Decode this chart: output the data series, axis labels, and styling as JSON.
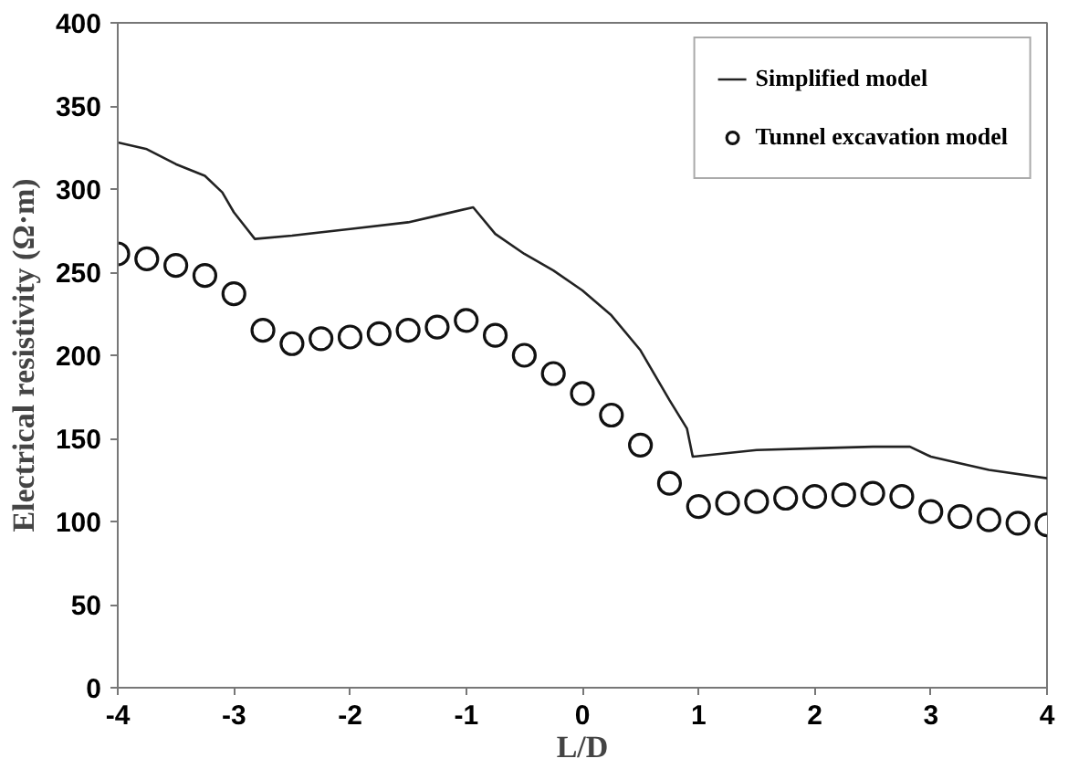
{
  "chart_data": {
    "type": "line",
    "xlabel": "L/D",
    "ylabel": "Electrical resistivity (Ω·m)",
    "xlim": [
      -4,
      4
    ],
    "xticks": [
      -4,
      -3,
      -2,
      -1,
      0,
      1,
      2,
      3,
      4
    ],
    "ylim": [
      0,
      400
    ],
    "yticks": [
      0,
      50,
      100,
      150,
      200,
      250,
      300,
      350,
      400
    ],
    "grid": false,
    "legend": "top right",
    "series": [
      {
        "name": "Simplified model",
        "color": "#222222",
        "line_style": "solid",
        "x": [
          -4,
          -3.75,
          -3.5,
          -3.25,
          -3.1,
          -3,
          -2.82,
          -2.5,
          -2,
          -1.5,
          -1.25,
          -0.94,
          -0.75,
          -0.5,
          -0.25,
          0,
          0.25,
          0.5,
          0.75,
          0.9,
          0.95,
          1.5,
          2,
          2.5,
          2.82,
          3,
          3.5,
          4
        ],
        "values": [
          328,
          324,
          315,
          308,
          298,
          286,
          270,
          272,
          276,
          280,
          284,
          289,
          273,
          261,
          251,
          239,
          224,
          203,
          173,
          156,
          139,
          143,
          144,
          145,
          145,
          139,
          131,
          126
        ]
      },
      {
        "name": "Tunnel excavation model",
        "type": "scatter",
        "marker": "circle",
        "color": "#111111",
        "x": [
          -4,
          -3.75,
          -3.5,
          -3.25,
          -3,
          -2.75,
          -2.5,
          -2.25,
          -2,
          -1.75,
          -1.5,
          -1.25,
          -1,
          -0.75,
          -0.5,
          -0.25,
          0,
          0.25,
          0.5,
          0.75,
          1,
          1.25,
          1.5,
          1.75,
          2,
          2.25,
          2.5,
          2.75,
          3,
          3.25,
          3.5,
          3.75,
          4
        ],
        "values": [
          261,
          258,
          254,
          248,
          237,
          215,
          207,
          210,
          211,
          213,
          215,
          217,
          221,
          212,
          200,
          189,
          177,
          164,
          146,
          123,
          109,
          111,
          112,
          114,
          115,
          116,
          117,
          115,
          106,
          103,
          101,
          99,
          98
        ]
      }
    ]
  }
}
